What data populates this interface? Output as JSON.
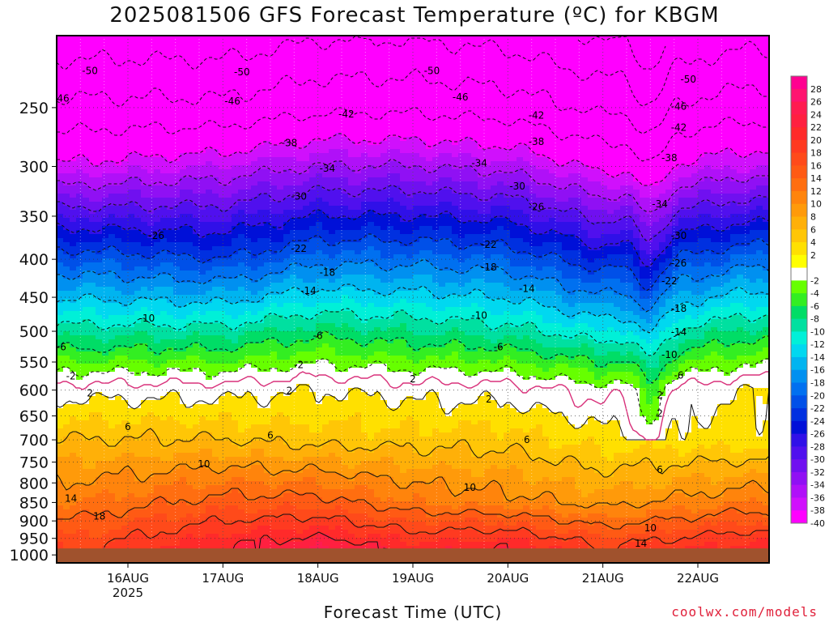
{
  "title": "2025081506 GFS Forecast Temperature (ºC) for KBGM",
  "credit": "coolwx.com/models",
  "chart_data": {
    "type": "heatmap",
    "title": "2025081506 GFS Forecast Temperature (ºC) for KBGM",
    "xlabel": "Forecast Time (UTC)",
    "ylabel": "",
    "y_scale": "log-pressure",
    "y_ticks": [
      250,
      300,
      350,
      400,
      450,
      500,
      550,
      600,
      650,
      700,
      750,
      800,
      850,
      900,
      950,
      1000
    ],
    "ylim": [
      1000,
      200
    ],
    "x_ticks": [
      {
        "label": "16AUG",
        "sub": "2025",
        "day": 16
      },
      {
        "label": "17AUG",
        "sub": "",
        "day": 17
      },
      {
        "label": "18AUG",
        "sub": "",
        "day": 18
      },
      {
        "label": "19AUG",
        "sub": "",
        "day": 19
      },
      {
        "label": "20AUG",
        "sub": "",
        "day": 20
      },
      {
        "label": "21AUG",
        "sub": "",
        "day": 21
      },
      {
        "label": "22AUG",
        "sub": "",
        "day": 22
      }
    ],
    "xlim": [
      "2025-08-15T06:00Z",
      "2025-08-22T18:00Z"
    ],
    "grid": true,
    "colorbar_labels": [
      28,
      26,
      24,
      22,
      20,
      18,
      16,
      14,
      12,
      10,
      8,
      6,
      4,
      2,
      -2,
      -4,
      -6,
      -8,
      -10,
      -12,
      -14,
      -16,
      -18,
      -20,
      -22,
      -24,
      -26,
      -28,
      -30,
      -32,
      -34,
      -36,
      -38,
      -40
    ],
    "colorbar_colors": [
      "#ff0090",
      "#ff1470",
      "#ff1c50",
      "#ff2040",
      "#ff2a2a",
      "#ff3a20",
      "#ff4a1a",
      "#ff5a14",
      "#ff6e10",
      "#ff840c",
      "#ff9a0a",
      "#ffb008",
      "#ffc606",
      "#ffe000",
      "#ffff00",
      "#ffffff",
      "#66ff00",
      "#33ee22",
      "#00dd66",
      "#00e0a0",
      "#00f0d8",
      "#00d8f0",
      "#00b4f0",
      "#0090f0",
      "#0070f0",
      "#0050e8",
      "#0030e0",
      "#0010d8",
      "#3010e8",
      "#5010ee",
      "#7010f0",
      "#9010f4",
      "#b010f8",
      "#d010fc",
      "#ff00ff"
    ],
    "series": [
      {
        "name": "",
        "level": 975,
        "temps": [
          19,
          22,
          24,
          21,
          22,
          18,
          20
        ]
      },
      {
        "name": "",
        "level": 850,
        "temps": [
          13,
          15,
          15,
          12,
          11,
          9,
          11
        ]
      },
      {
        "name": "",
        "level": 700,
        "temps": [
          6,
          6,
          5,
          5,
          5,
          3,
          3
        ]
      },
      {
        "name": "",
        "level": 600,
        "temps": [
          1,
          1,
          2,
          1,
          1,
          -1,
          1
        ]
      },
      {
        "name": "",
        "level": 500,
        "temps": [
          -9,
          -9,
          -7,
          -8,
          -9,
          -12,
          -9
        ]
      },
      {
        "name": "",
        "level": 400,
        "temps": [
          -21,
          -22,
          -19,
          -19,
          -20,
          -24,
          -21
        ]
      },
      {
        "name": "",
        "level": 300,
        "temps": [
          -37,
          -36,
          -34,
          -34,
          -35,
          -39,
          -37
        ]
      },
      {
        "name": "",
        "level": 250,
        "temps": [
          -45,
          -45,
          -43,
          -43,
          -44,
          -47,
          -45
        ]
      }
    ],
    "contour_labels": [
      {
        "t": 15.6,
        "p": 223,
        "v": "-50"
      },
      {
        "t": 17.2,
        "p": 224,
        "v": "-50"
      },
      {
        "t": 19.2,
        "p": 223,
        "v": "-50"
      },
      {
        "t": 21.9,
        "p": 229,
        "v": "-50"
      },
      {
        "t": 15.3,
        "p": 243,
        "v": "-46"
      },
      {
        "t": 17.1,
        "p": 245,
        "v": "-46"
      },
      {
        "t": 19.5,
        "p": 242,
        "v": "-46"
      },
      {
        "t": 21.8,
        "p": 249,
        "v": "-46"
      },
      {
        "t": 15.0,
        "p": 264,
        "v": "-42"
      },
      {
        "t": 18.3,
        "p": 255,
        "v": "-42"
      },
      {
        "t": 20.3,
        "p": 256,
        "v": "-42"
      },
      {
        "t": 21.8,
        "p": 266,
        "v": "-42"
      },
      {
        "t": 17.7,
        "p": 279,
        "v": "-38"
      },
      {
        "t": 20.3,
        "p": 278,
        "v": "-38"
      },
      {
        "t": 21.7,
        "p": 292,
        "v": "-38"
      },
      {
        "t": 14.9,
        "p": 303,
        "v": "-38"
      },
      {
        "t": 15.1,
        "p": 323,
        "v": "-34"
      },
      {
        "t": 18.1,
        "p": 302,
        "v": "-34"
      },
      {
        "t": 19.7,
        "p": 297,
        "v": "-34"
      },
      {
        "t": 21.6,
        "p": 337,
        "v": "-34"
      },
      {
        "t": 15.1,
        "p": 346,
        "v": "-30"
      },
      {
        "t": 17.8,
        "p": 329,
        "v": "-30"
      },
      {
        "t": 20.1,
        "p": 319,
        "v": "-30"
      },
      {
        "t": 21.8,
        "p": 372,
        "v": "-30"
      },
      {
        "t": 16.3,
        "p": 372,
        "v": "-26"
      },
      {
        "t": 20.3,
        "p": 340,
        "v": "-26"
      },
      {
        "t": 21.8,
        "p": 405,
        "v": "-26"
      },
      {
        "t": 14.9,
        "p": 396,
        "v": "-22"
      },
      {
        "t": 17.8,
        "p": 387,
        "v": "-22"
      },
      {
        "t": 19.8,
        "p": 382,
        "v": "-22"
      },
      {
        "t": 21.7,
        "p": 428,
        "v": "-22"
      },
      {
        "t": 15.0,
        "p": 422,
        "v": "-18"
      },
      {
        "t": 18.1,
        "p": 417,
        "v": "-18"
      },
      {
        "t": 19.8,
        "p": 410,
        "v": "-18"
      },
      {
        "t": 21.8,
        "p": 466,
        "v": "-18"
      },
      {
        "t": 15.0,
        "p": 450,
        "v": "-14"
      },
      {
        "t": 17.9,
        "p": 441,
        "v": "-14"
      },
      {
        "t": 20.2,
        "p": 438,
        "v": "-14"
      },
      {
        "t": 21.8,
        "p": 501,
        "v": "-14"
      },
      {
        "t": 16.2,
        "p": 480,
        "v": "-10"
      },
      {
        "t": 19.7,
        "p": 476,
        "v": "-10"
      },
      {
        "t": 21.7,
        "p": 538,
        "v": "-10"
      },
      {
        "t": 15.3,
        "p": 525,
        "v": "-6"
      },
      {
        "t": 18.0,
        "p": 507,
        "v": "-6"
      },
      {
        "t": 19.9,
        "p": 525,
        "v": "-6"
      },
      {
        "t": 21.8,
        "p": 573,
        "v": "-6"
      },
      {
        "t": 15.4,
        "p": 575,
        "v": "-2"
      },
      {
        "t": 17.8,
        "p": 555,
        "v": "-2"
      },
      {
        "t": 15.6,
        "p": 606,
        "v": "2"
      },
      {
        "t": 17.7,
        "p": 601,
        "v": "2"
      },
      {
        "t": 19.8,
        "p": 617,
        "v": "2"
      },
      {
        "t": 19.0,
        "p": 580,
        "v": "2"
      },
      {
        "t": 21.6,
        "p": 610,
        "v": "2"
      },
      {
        "t": 21.6,
        "p": 645,
        "v": "2"
      },
      {
        "t": 15.0,
        "p": 675,
        "v": "6"
      },
      {
        "t": 16.0,
        "p": 672,
        "v": "6"
      },
      {
        "t": 17.5,
        "p": 690,
        "v": "6"
      },
      {
        "t": 20.2,
        "p": 700,
        "v": "6"
      },
      {
        "t": 21.6,
        "p": 768,
        "v": "6"
      },
      {
        "t": 14.9,
        "p": 690,
        "v": "0"
      },
      {
        "t": 14.5,
        "p": 795,
        "v": "10"
      },
      {
        "t": 16.8,
        "p": 755,
        "v": "10"
      },
      {
        "t": 19.6,
        "p": 812,
        "v": "10"
      },
      {
        "t": 21.5,
        "p": 920,
        "v": "10"
      },
      {
        "t": 15.4,
        "p": 840,
        "v": "14"
      },
      {
        "t": 21.4,
        "p": 965,
        "v": "14"
      },
      {
        "t": 15.7,
        "p": 887,
        "v": "18"
      }
    ],
    "zero_line_color": "#d8307a",
    "ground_color": "#a0522d"
  }
}
